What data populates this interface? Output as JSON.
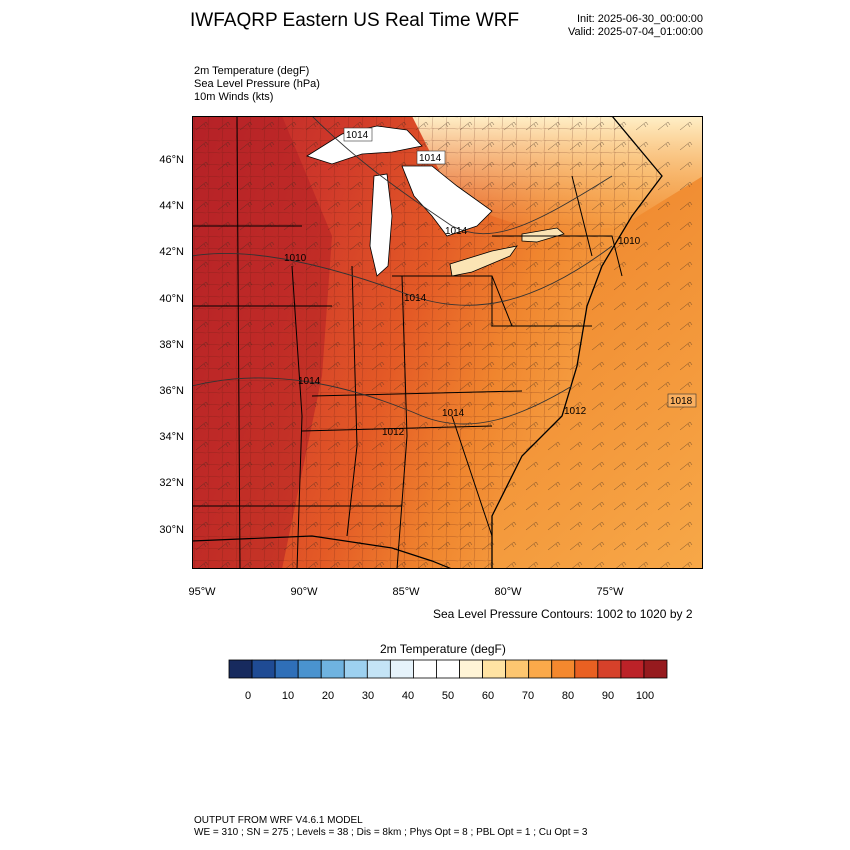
{
  "header": {
    "title": "IWFAQRP Eastern US Real Time WRF",
    "init": "Init: 2025-06-30_00:00:00",
    "valid": "Valid: 2025-07-04_01:00:00"
  },
  "fields": [
    "2m Temperature   (degF)",
    "Sea Level Pressure   (hPa)",
    "10m Winds   (kts)"
  ],
  "axes": {
    "lat_labels": [
      "46°N",
      "44°N",
      "42°N",
      "40°N",
      "38°N",
      "36°N",
      "34°N",
      "32°N",
      "30°N"
    ],
    "lon_labels": [
      "95°W",
      "90°W",
      "85°W",
      "80°W",
      "75°W"
    ]
  },
  "isobar_labels": [
    "1014",
    "1014",
    "1014",
    "1010",
    "1014",
    "1010",
    "1014",
    "1012",
    "1014",
    "1018",
    "1012"
  ],
  "slp_note": "Sea Level Pressure Contours: 1002 to 1020 by 2",
  "colorbar": {
    "title": "2m Temperature  (degF)",
    "labels": [
      "0",
      "10",
      "20",
      "30",
      "40",
      "50",
      "60",
      "70",
      "80",
      "90",
      "100"
    ],
    "colors": [
      "#172a5e",
      "#1f4b94",
      "#2f6fb8",
      "#4a93cf",
      "#6fb3e0",
      "#9dd1f0",
      "#c4e4f6",
      "#e6f3fb",
      "#ffffff",
      "#ffffff",
      "#fff4d6",
      "#ffe3a3",
      "#fdc670",
      "#fba94a",
      "#f4882e",
      "#e96022",
      "#d6412a",
      "#bc2228",
      "#961a1e"
    ]
  },
  "footer": {
    "line1": "OUTPUT FROM WRF V4.6.1 MODEL",
    "line2": "WE = 310 ; SN = 275 ; Levels = 38 ; Dis = 8km ; Phys Opt = 8 ; PBL Opt = 1 ; Cu Opt = 3"
  }
}
